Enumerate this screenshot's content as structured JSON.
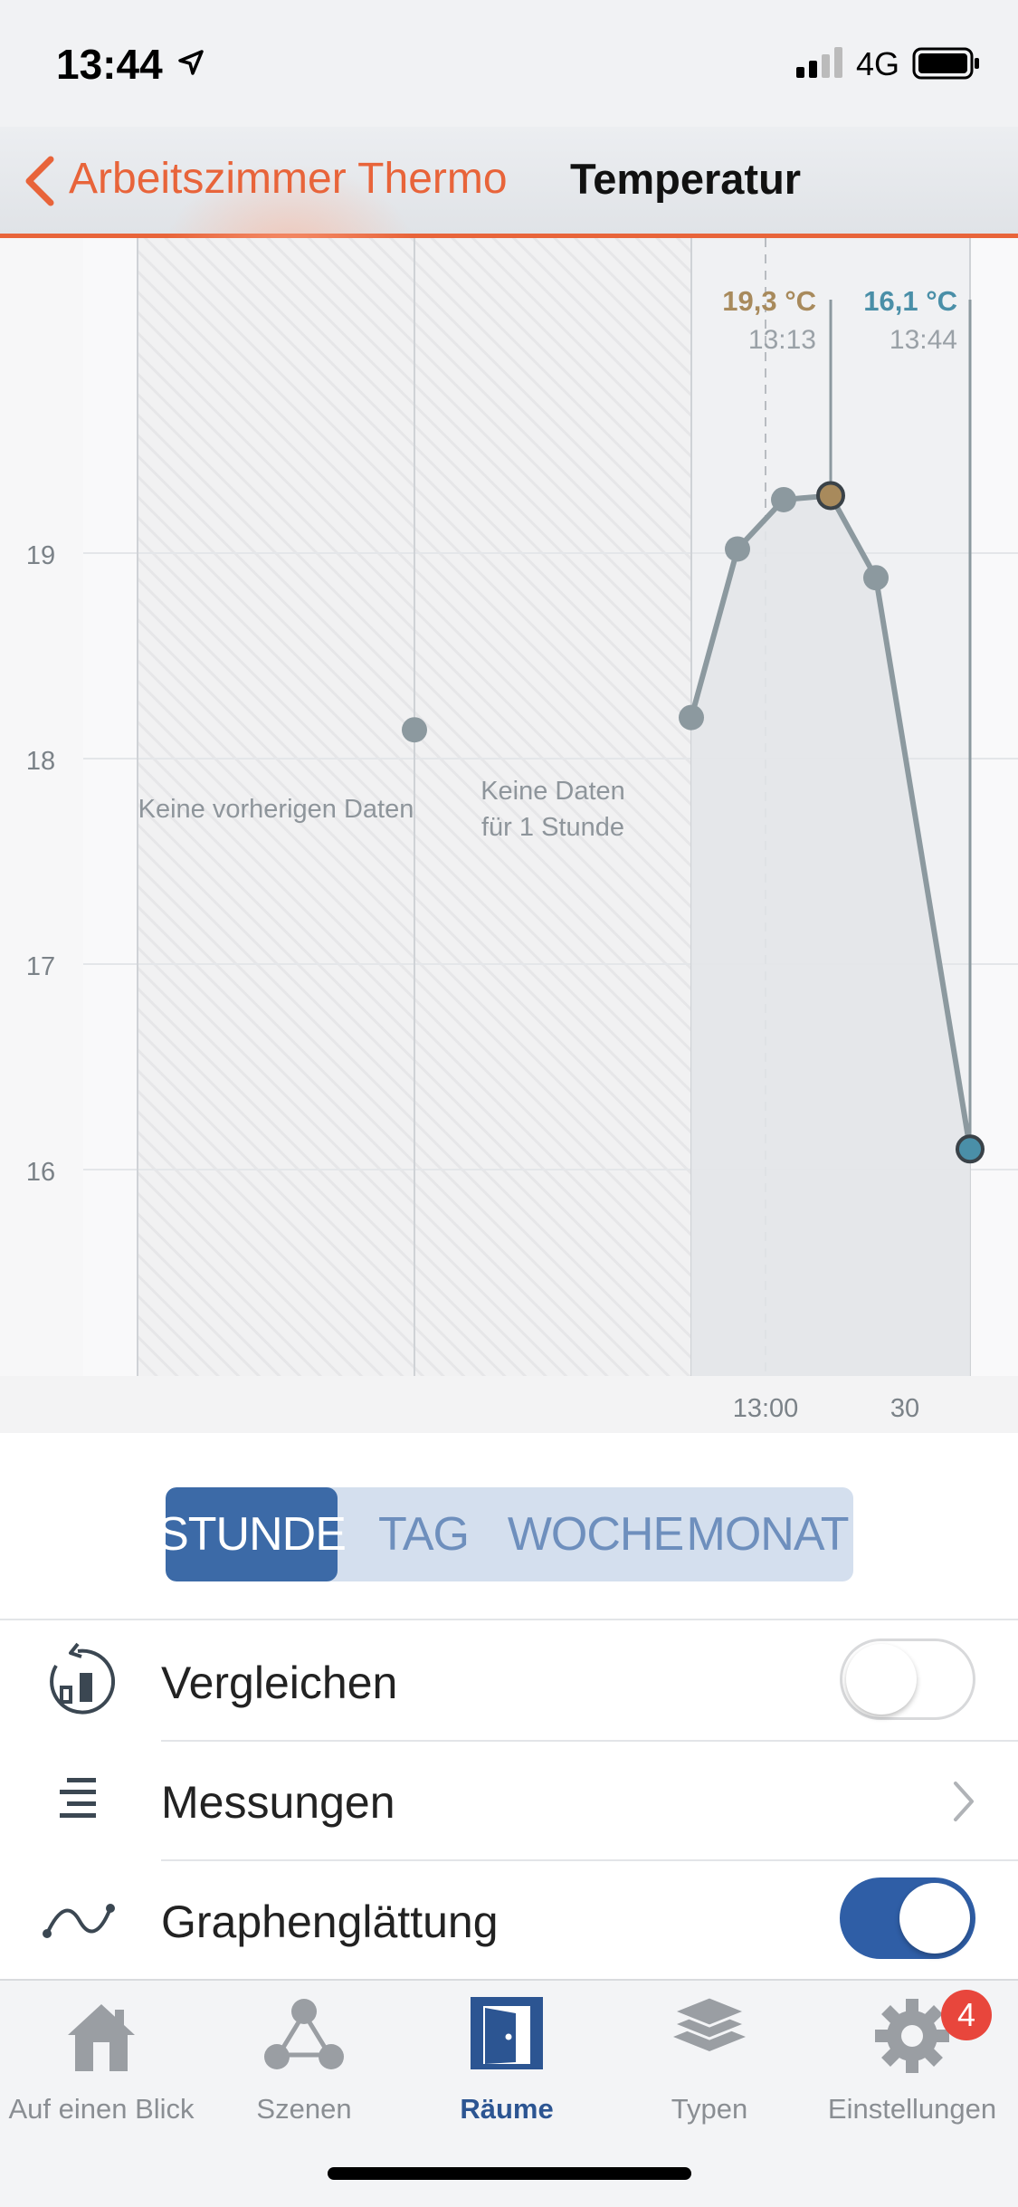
{
  "status_bar": {
    "time": "13:44",
    "network": "4G"
  },
  "nav": {
    "back_label": "Arbeitszimmer Thermo",
    "title": "Temperatur"
  },
  "chart_data": {
    "type": "line",
    "ylim": [
      15,
      20.5
    ],
    "yticks": [
      16,
      17,
      18,
      19
    ],
    "xtick_labels": [
      "13:00",
      "30"
    ],
    "region_labels": {
      "no_previous": "Keine vorherigen Daten",
      "no_data_line1": "Keine Daten",
      "no_data_line2": "für 1 Stunde"
    },
    "isolated_point": 18.14,
    "series": [
      {
        "values": [
          18.2,
          19.02,
          19.26,
          19.28,
          18.88,
          16.1
        ]
      }
    ],
    "markers": [
      {
        "value_label": "19,3 °C",
        "time_label": "13:13",
        "color": "#a88a5c"
      },
      {
        "value_label": "16,1 °C",
        "time_label": "13:44",
        "color": "#4a8fa8"
      }
    ],
    "line_color": "#8c999f"
  },
  "segments": [
    "STUNDE",
    "TAG",
    "WOCHE",
    "MONAT"
  ],
  "rows": {
    "compare": {
      "label": "Vergleichen",
      "toggle": "off"
    },
    "measurements": {
      "label": "Messungen"
    },
    "smoothing": {
      "label": "Graphenglättung",
      "toggle": "on"
    }
  },
  "tabbar": {
    "tabs": [
      {
        "label": "Auf einen Blick",
        "icon": "house-icon"
      },
      {
        "label": "Szenen",
        "icon": "scenes-icon"
      },
      {
        "label": "Räume",
        "icon": "door-icon"
      },
      {
        "label": "Typen",
        "icon": "layers-icon"
      },
      {
        "label": "Einstellungen",
        "icon": "gear-icon"
      }
    ],
    "active_tab": "Räume",
    "badge": "4"
  },
  "colors": {
    "accent": "#e8643a",
    "primary": "#3c6aa7"
  }
}
